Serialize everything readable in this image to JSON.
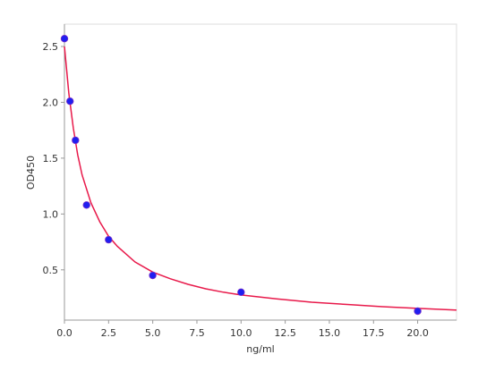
{
  "chart_data": {
    "type": "scatter",
    "title": "",
    "xlabel": "ng/ml",
    "ylabel": "OD450",
    "xlim": [
      0,
      22.2
    ],
    "ylim": [
      0.05,
      2.7
    ],
    "grid": false,
    "legend": "none",
    "x_ticks": [
      "0.0",
      "2.5",
      "5.0",
      "7.5",
      "10.0",
      "12.5",
      "15.0",
      "17.5",
      "20.0"
    ],
    "y_ticks": [
      "0.5",
      "1.0",
      "1.5",
      "2.0",
      "2.5"
    ],
    "series": [
      {
        "type": "scatter",
        "color": "#1f1ff0",
        "x": [
          0.0,
          0.3125,
          0.625,
          1.25,
          2.5,
          5.0,
          10.0,
          20.0
        ],
        "y": [
          2.57,
          2.01,
          1.66,
          1.08,
          0.77,
          0.45,
          0.3,
          0.13
        ]
      },
      {
        "type": "line",
        "color": "#e8194a",
        "x": [
          0.0,
          0.25,
          0.5,
          0.75,
          1.0,
          1.5,
          2.0,
          2.5,
          3.0,
          4.0,
          5.0,
          6.0,
          7.0,
          8.0,
          9.0,
          10.0,
          12.0,
          14.0,
          16.0,
          18.0,
          20.0,
          22.2
        ],
        "y": [
          2.5,
          2.08,
          1.77,
          1.53,
          1.35,
          1.1,
          0.93,
          0.8,
          0.71,
          0.57,
          0.48,
          0.42,
          0.37,
          0.33,
          0.3,
          0.275,
          0.24,
          0.21,
          0.19,
          0.17,
          0.155,
          0.14
        ]
      }
    ]
  }
}
